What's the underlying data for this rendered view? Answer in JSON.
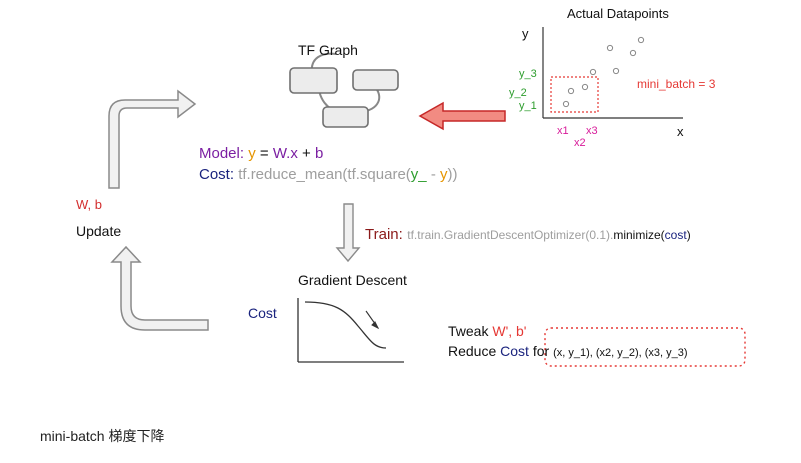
{
  "colors": {
    "purple": "#7b1fa2",
    "navy": "#1a237e",
    "orange": "#e69500",
    "darkred": "#8b1a1a",
    "red": "#e53935",
    "magenta": "#d81b9a",
    "green": "#2e9d2e",
    "gray": "#9e9e9e"
  },
  "tf_graph": {
    "title": "TF Graph"
  },
  "model": {
    "label": "Model:",
    "y": "y",
    "eq": "=",
    "W": "W",
    "dotx": ".x",
    "plus": "+",
    "b": "b"
  },
  "cost_line": {
    "label": "Cost:",
    "fn_a": "tf.reduce_mean(",
    "fn_b": "tf.square(",
    "y_": "y_",
    "minus": "-",
    "y": "y",
    "close": "))"
  },
  "train": {
    "label": "Train:",
    "call_a": "tf.train.GradientDescentOptimizer(0.1).",
    "minimize": "minimize(",
    "cost": "cost",
    "close": ")"
  },
  "update": {
    "wb": "W, b",
    "label": "Update"
  },
  "gradient": {
    "title": "Gradient Descent",
    "cost_label": "Cost"
  },
  "tweak": {
    "line1_a": "Tweak",
    "line1_b": "W', b'",
    "line2_a": "Reduce",
    "line2_b": "Cost",
    "line2_c": "for",
    "pairs": "(x, y_1), (x2, y_2), (x3, y_3)"
  },
  "datapoints": {
    "title": "Actual Datapoints",
    "y_axis": "y",
    "x_axis": "x",
    "y_labels": [
      "y_3",
      "y_2",
      "y_1"
    ],
    "x_labels": [
      "x1",
      "x3",
      "x2"
    ],
    "mini_batch": "mini_batch = 3"
  },
  "caption": "mini-batch 梯度下降"
}
